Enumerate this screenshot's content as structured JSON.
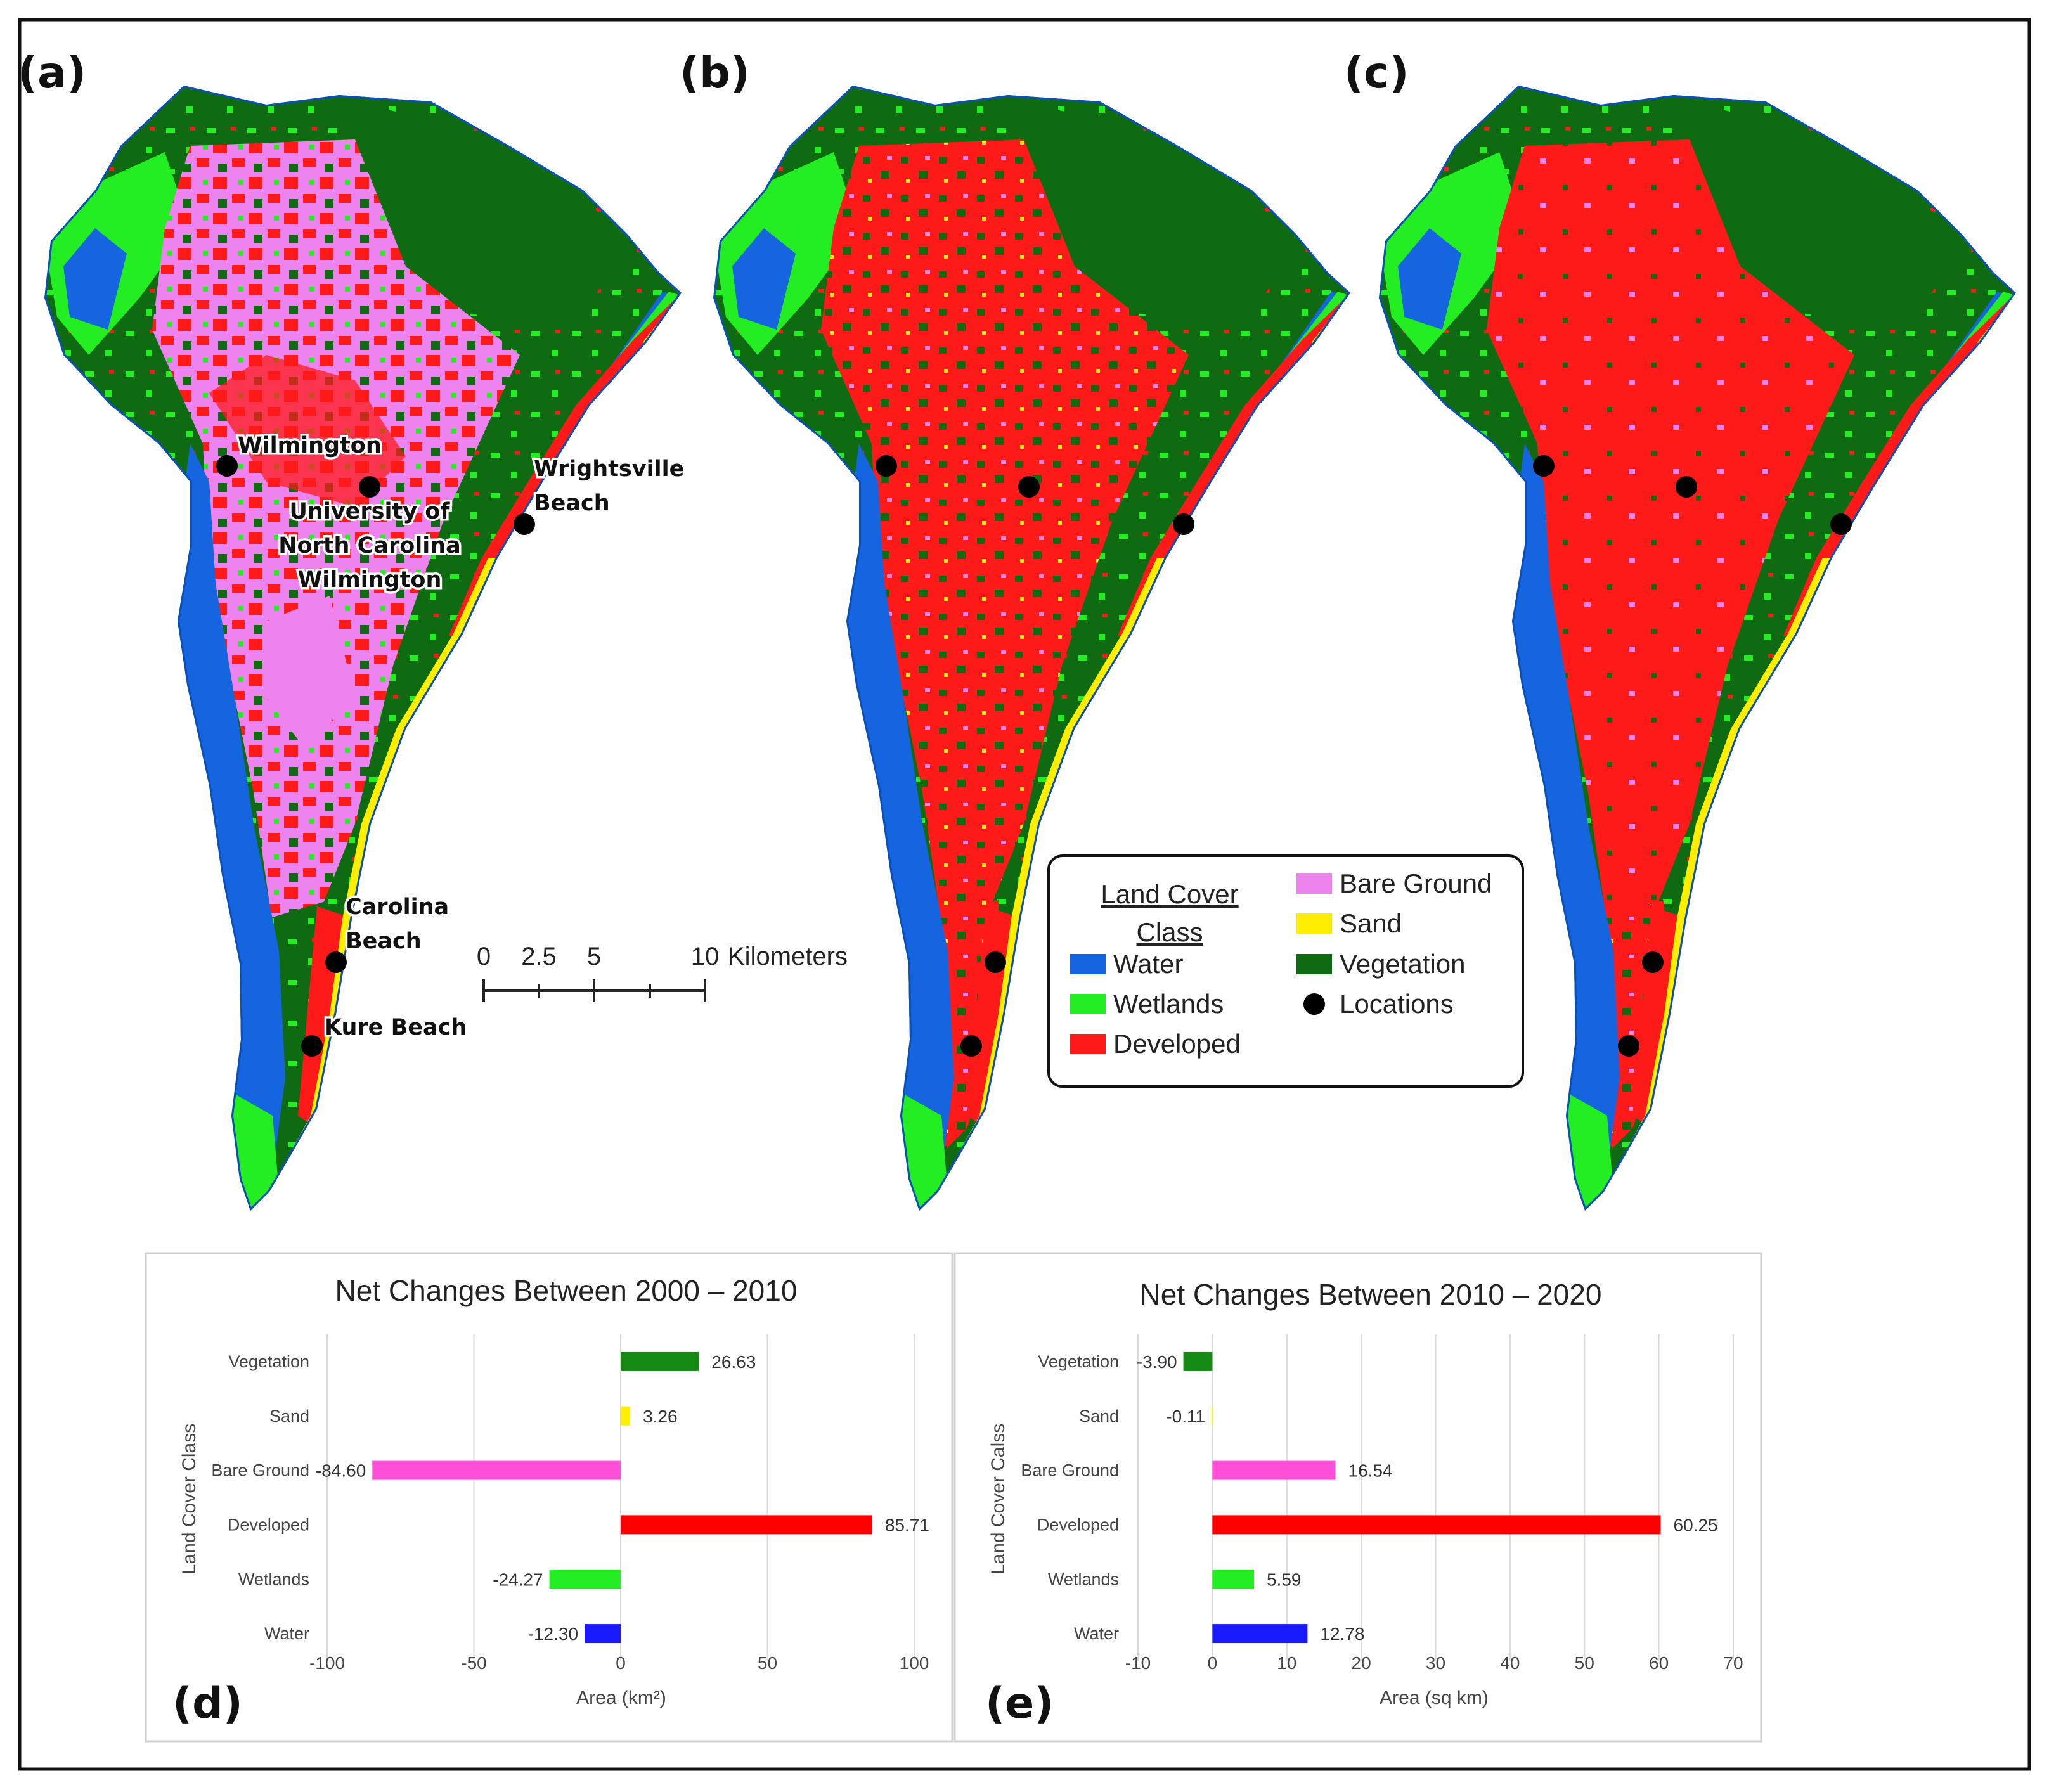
{
  "panels": {
    "a": "(a)",
    "b": "(b)",
    "c": "(c)",
    "d": "(d)",
    "e": "(e)"
  },
  "locations": [
    {
      "name": "wilmington",
      "lines": [
        "Wilmington"
      ]
    },
    {
      "name": "uncw",
      "lines": [
        "University of",
        "North Carolina",
        "Wilmington"
      ]
    },
    {
      "name": "wrightsville-beach",
      "lines": [
        "Wrightsville",
        "Beach"
      ]
    },
    {
      "name": "carolina-beach",
      "lines": [
        "Carolina",
        "Beach"
      ]
    },
    {
      "name": "kure-beach",
      "lines": [
        "Kure Beach"
      ]
    }
  ],
  "scalebar": {
    "ticks": [
      "0",
      "2.5",
      "5",
      "10"
    ],
    "unit": "Kilometers"
  },
  "legend": {
    "title_lines": [
      "Land Cover",
      "Class"
    ],
    "items": [
      {
        "label": "Water",
        "color": "#1565e0",
        "symbol": "rect"
      },
      {
        "label": "Wetlands",
        "color": "#22ee22",
        "symbol": "rect"
      },
      {
        "label": "Developed",
        "color": "#ff1a1a",
        "symbol": "rect"
      },
      {
        "label": "Bare Ground",
        "color": "#ee82ee",
        "symbol": "rect"
      },
      {
        "label": "Sand",
        "color": "#ffee00",
        "symbol": "rect"
      },
      {
        "label": "Vegetation",
        "color": "#0f6b12",
        "symbol": "rect"
      },
      {
        "label": "Locations",
        "color": "#000000",
        "symbol": "dot"
      }
    ]
  },
  "colors": {
    "water": "#1565e0",
    "wetlands": "#22ee22",
    "developed": "#ff1a1a",
    "bare_ground": "#ee82ee",
    "sand": "#ffee00",
    "vegetation": "#0f6b12"
  },
  "chart_data": [
    {
      "type": "bar",
      "orientation": "horizontal",
      "title": "Net Changes Between 2000 – 2010",
      "xlabel": "Area (km²)",
      "ylabel": "Land Cover Class",
      "categories": [
        "Vegetation",
        "Sand",
        "Bare Ground",
        "Developed",
        "Wetlands",
        "Water"
      ],
      "values": [
        26.63,
        3.26,
        -84.6,
        85.71,
        -24.27,
        -12.3
      ],
      "value_labels": [
        "26.63",
        "3.26",
        "-84.60",
        "85.71",
        "-24.27",
        "-12.30"
      ],
      "bar_colors": [
        "#148a14",
        "#ffee00",
        "#ff4fd8",
        "#ff0000",
        "#22ee22",
        "#1a1aff"
      ],
      "xlim": [
        -100,
        100
      ],
      "xticks": [
        -100,
        -50,
        0,
        50,
        100
      ],
      "grid": true,
      "legend": "none"
    },
    {
      "type": "bar",
      "orientation": "horizontal",
      "title": "Net Changes Between 2010 – 2020",
      "xlabel": "Area (sq km)",
      "ylabel": "Land Cover Calss",
      "categories": [
        "Vegetation",
        "Sand",
        "Bare Ground",
        "Developed",
        "Wetlands",
        "Water"
      ],
      "values": [
        -3.9,
        -0.11,
        16.54,
        60.25,
        5.59,
        12.78
      ],
      "value_labels": [
        "-3.90",
        "-0.11",
        "16.54",
        "60.25",
        "5.59",
        "12.78"
      ],
      "bar_colors": [
        "#148a14",
        "#ffee00",
        "#ff4fd8",
        "#ff0000",
        "#22ee22",
        "#1a1aff"
      ],
      "xlim": [
        -10,
        70
      ],
      "xticks": [
        -10,
        0,
        10,
        20,
        30,
        40,
        50,
        60,
        70
      ],
      "grid": true,
      "legend": "none"
    }
  ]
}
